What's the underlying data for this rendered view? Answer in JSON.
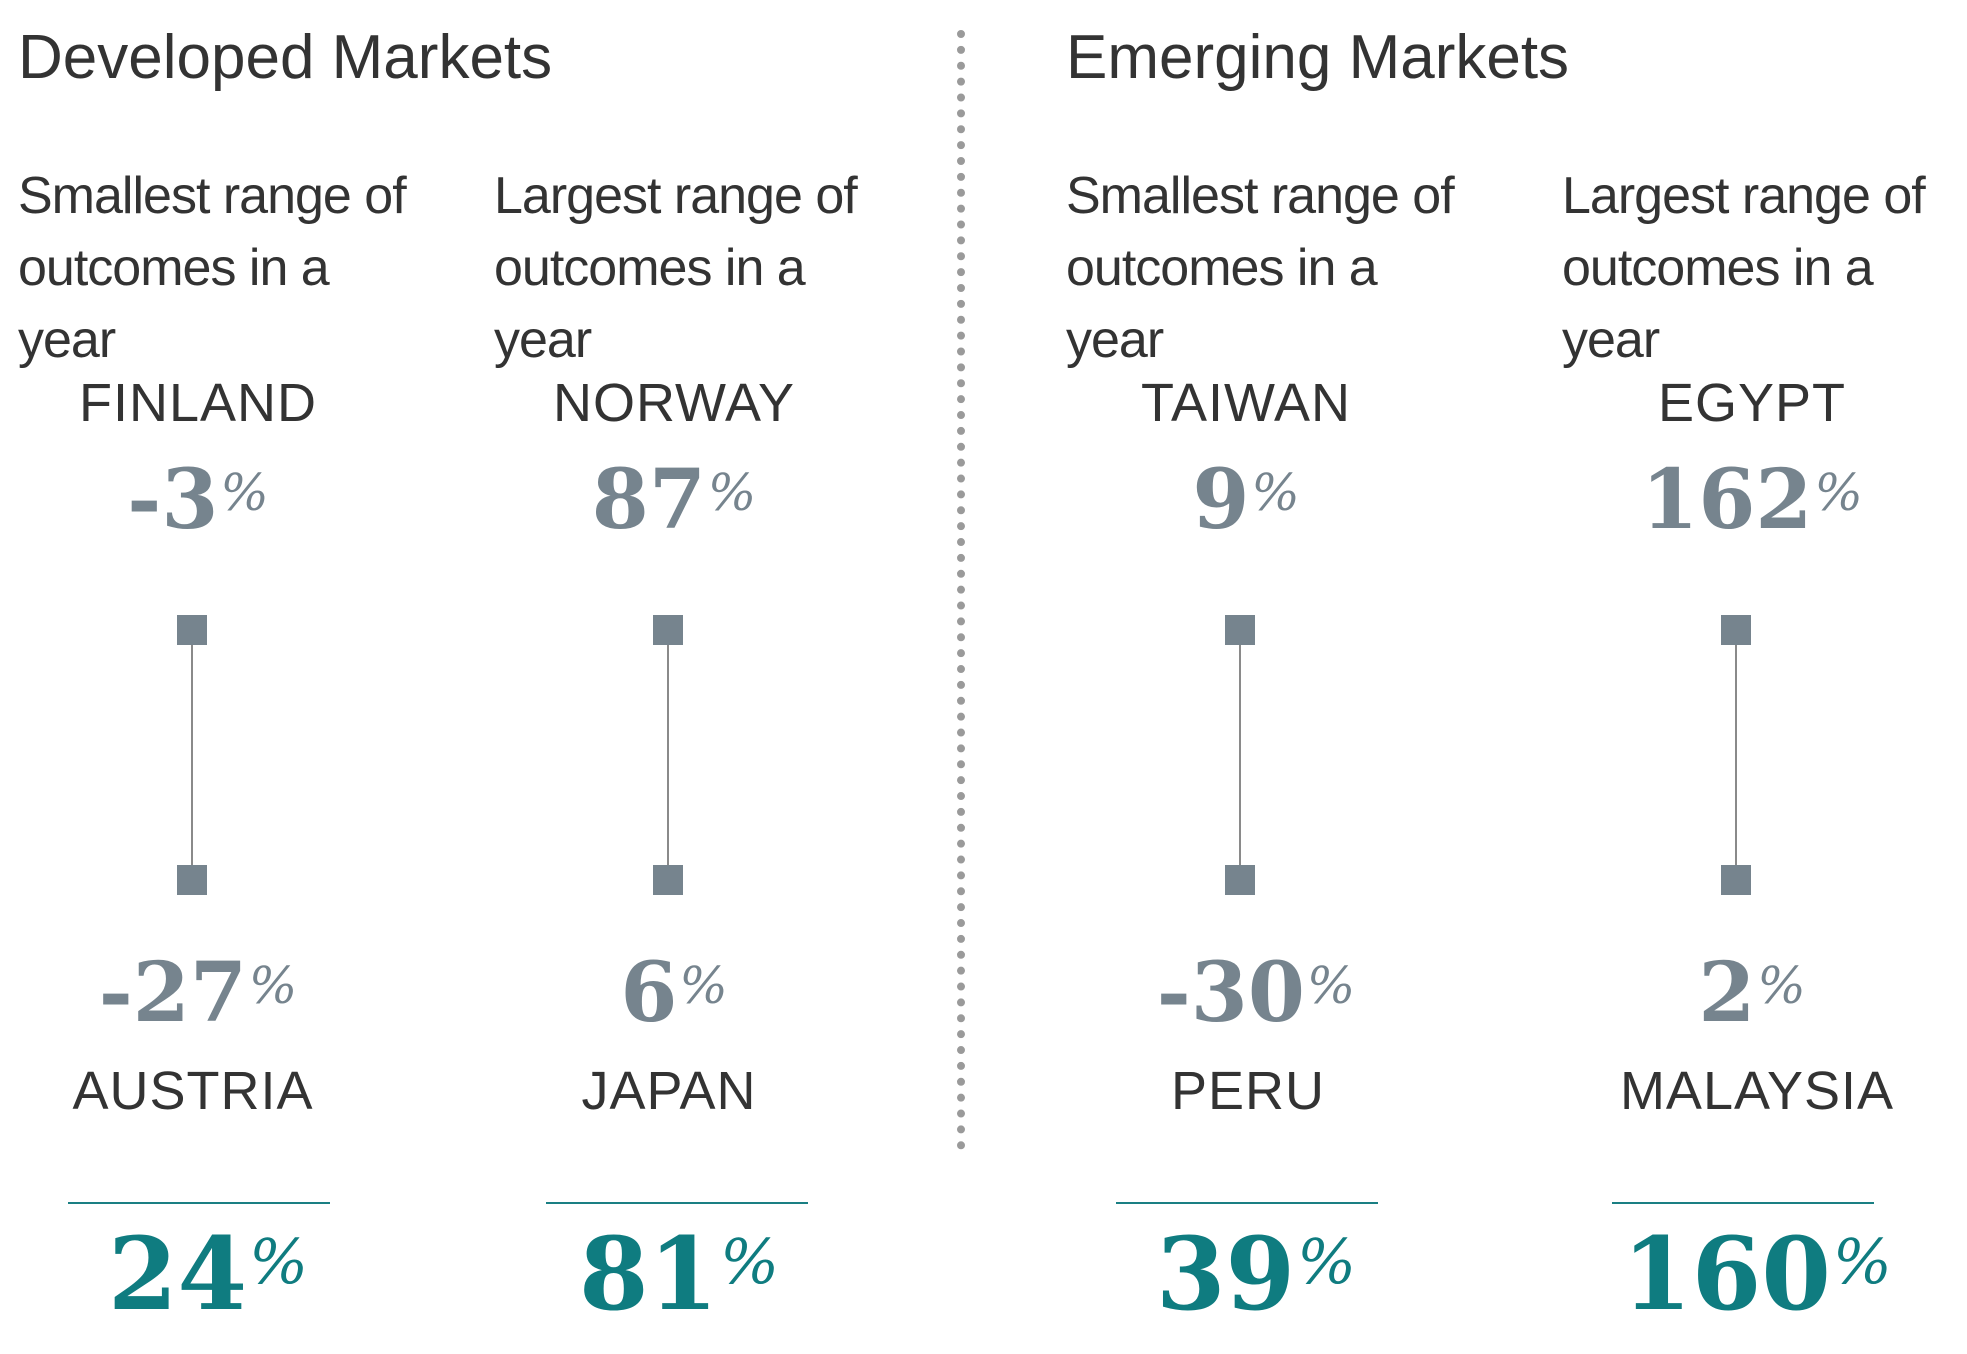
{
  "sections": {
    "developed_title": "Developed Markets",
    "emerging_title": "Emerging Markets"
  },
  "columns": [
    {
      "description": "Smallest range of\noutcomes in a year",
      "top_country": "FINLAND",
      "top_value": "-3",
      "bottom_country": "AUSTRIA",
      "bottom_value": "-27",
      "range": "24",
      "pct": "%"
    },
    {
      "description": "Largest range of\noutcomes in a year",
      "top_country": "NORWAY",
      "top_value": "87",
      "bottom_country": "JAPAN",
      "bottom_value": "6",
      "range": "81",
      "pct": "%"
    },
    {
      "description": "Smallest range of\noutcomes in a year",
      "top_country": "TAIWAN",
      "top_value": "9",
      "bottom_country": "PERU",
      "bottom_value": "-30",
      "range": "39",
      "pct": "%"
    },
    {
      "description": "Largest range of\noutcomes in a year",
      "top_country": "EGYPT",
      "top_value": "162",
      "bottom_country": "MALAYSIA",
      "bottom_value": "2",
      "range": "160",
      "pct": "%"
    }
  ],
  "colors": {
    "value_gray": "#76848e",
    "marker_gray": "#76848e",
    "accent_teal": "#0f7c80",
    "text_dark": "#333333"
  },
  "chart_data": [
    {
      "type": "range",
      "title": "Smallest range of outcomes in a year",
      "group": "Developed Markets",
      "high": {
        "label": "FINLAND",
        "value": -3
      },
      "low": {
        "label": "AUSTRIA",
        "value": -27
      },
      "range": 24
    },
    {
      "type": "range",
      "title": "Largest range of outcomes in a year",
      "group": "Developed Markets",
      "high": {
        "label": "NORWAY",
        "value": 87
      },
      "low": {
        "label": "JAPAN",
        "value": 6
      },
      "range": 81
    },
    {
      "type": "range",
      "title": "Smallest range of outcomes in a year",
      "group": "Emerging Markets",
      "high": {
        "label": "TAIWAN",
        "value": 9
      },
      "low": {
        "label": "PERU",
        "value": -30
      },
      "range": 39
    },
    {
      "type": "range",
      "title": "Largest range of outcomes in a year",
      "group": "Emerging Markets",
      "high": {
        "label": "EGYPT",
        "value": 162
      },
      "low": {
        "label": "MALAYSIA",
        "value": 2
      },
      "range": 160
    }
  ]
}
